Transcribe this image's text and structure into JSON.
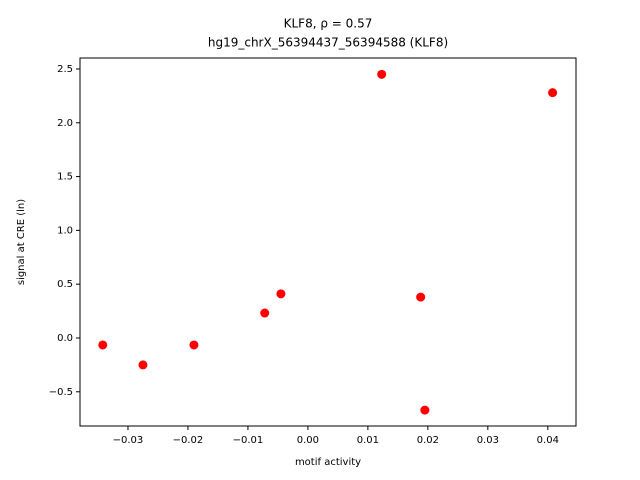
{
  "chart_data": {
    "type": "scatter",
    "title": "KLF8, ρ = 0.57",
    "subtitle": "hg19_chrX_56394437_56394588 (KLF8)",
    "x_label": "motif activity",
    "y_label": "signal at CRE (ln)",
    "color": "#ff0000",
    "x": [
      -0.0342,
      -0.0275,
      -0.019,
      -0.0072,
      -0.0045,
      0.0123,
      0.0188,
      0.0195,
      0.0408
    ],
    "values": [
      -0.065,
      -0.25,
      -0.065,
      0.232,
      0.41,
      2.45,
      0.38,
      -0.67,
      2.28
    ],
    "xlim": [
      -0.038,
      0.0447
    ],
    "ylim": [
      -0.818,
      2.602
    ],
    "xticks": [
      {
        "value": -0.03,
        "label": "−0.03"
      },
      {
        "value": -0.02,
        "label": "−0.02"
      },
      {
        "value": -0.01,
        "label": "−0.01"
      },
      {
        "value": 0,
        "label": "0.00"
      },
      0.01,
      0.02,
      0.03,
      0.04
    ],
    "yticks": [
      {
        "value": -0.5,
        "label": "−0.5"
      },
      {
        "value": 0,
        "label": "0.0"
      },
      0.5,
      {
        "value": 1,
        "label": "1.0"
      },
      1.5,
      {
        "value": 2,
        "label": "2.0"
      },
      2.5
    ]
  }
}
